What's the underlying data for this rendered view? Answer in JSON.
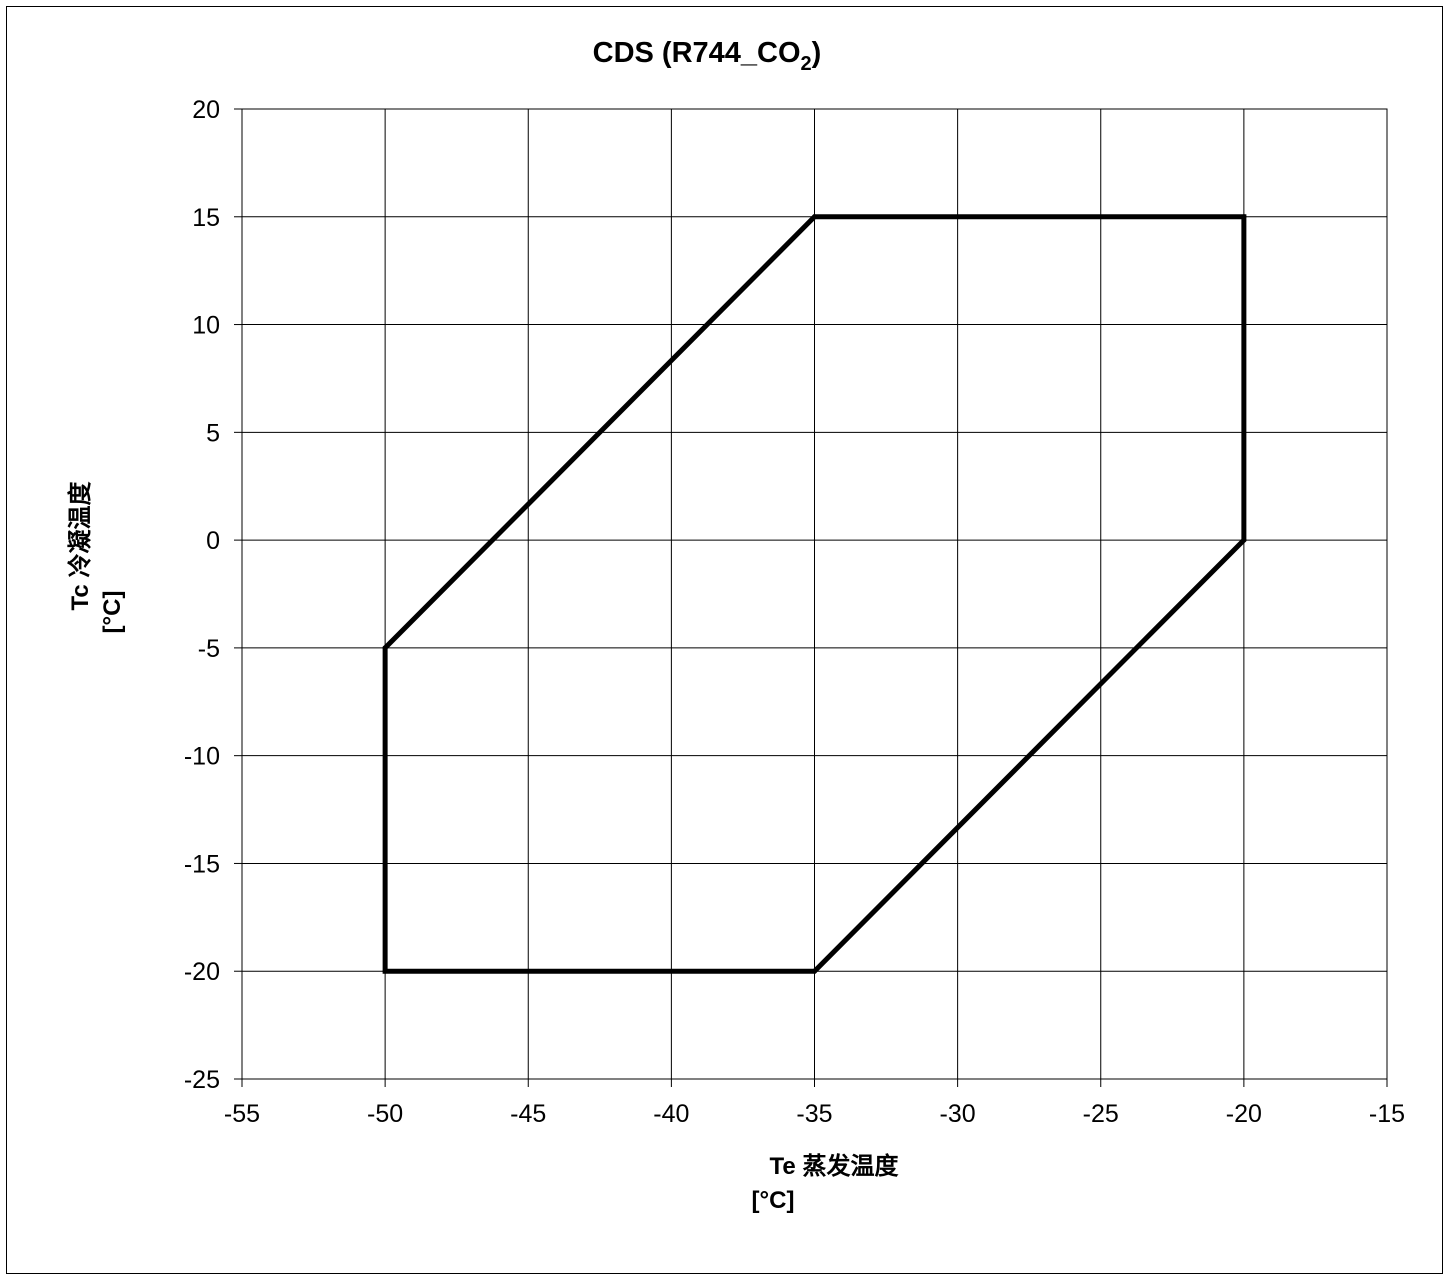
{
  "chart_data": {
    "type": "line",
    "title": "CDS (R744_CO",
    "title_subscript": "2",
    "title_suffix": ")",
    "xlabel_line1": "Te  蒸发温度",
    "xlabel_line2": "[°C]",
    "ylabel_line1": "Tc  冷凝温度",
    "ylabel_line2": "[°C]",
    "xlim": [
      -55,
      -15
    ],
    "ylim": [
      -25,
      20
    ],
    "x_ticks": [
      -55,
      -50,
      -45,
      -40,
      -35,
      -30,
      -25,
      -20,
      -15
    ],
    "y_ticks": [
      20,
      15,
      10,
      5,
      0,
      -5,
      -10,
      -15,
      -20,
      -25
    ],
    "grid": true,
    "series": [
      {
        "closed": true,
        "color": "#000000",
        "points": [
          {
            "x": -50,
            "y": -5
          },
          {
            "x": -35,
            "y": 15
          },
          {
            "x": -20,
            "y": 15
          },
          {
            "x": -20,
            "y": 0
          },
          {
            "x": -35,
            "y": -20
          },
          {
            "x": -50,
            "y": -20
          }
        ]
      }
    ]
  }
}
